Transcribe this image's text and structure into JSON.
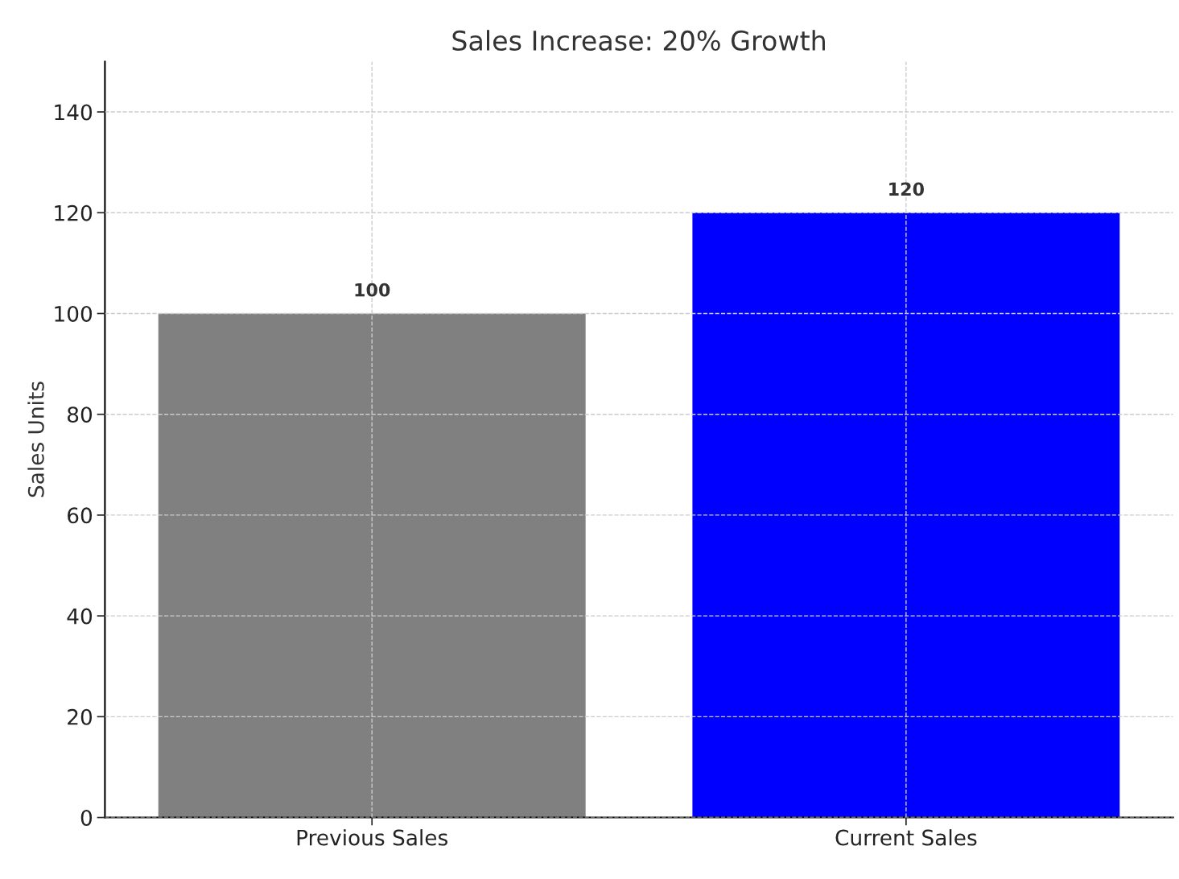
{
  "chart_data": {
    "type": "bar",
    "title": "Sales Increase: 20% Growth",
    "ylabel": "Sales Units",
    "categories": [
      "Previous Sales",
      "Current Sales"
    ],
    "values": [
      100,
      120
    ],
    "colors": [
      "#808080",
      "#0000ff"
    ],
    "ylim": [
      0,
      150
    ],
    "yticks": [
      0,
      20,
      40,
      60,
      80,
      100,
      120,
      140
    ],
    "grid": true,
    "data_labels": true
  }
}
